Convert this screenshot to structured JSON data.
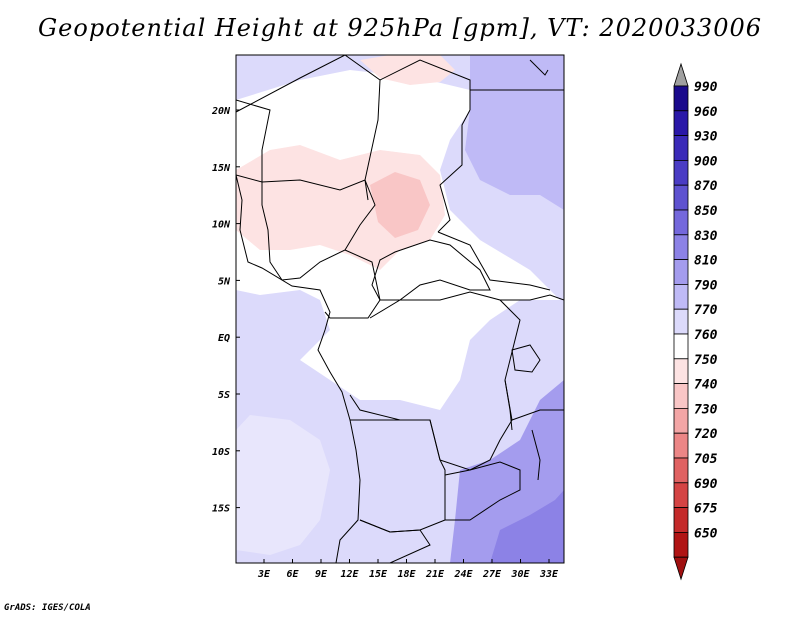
{
  "title": "Geopotential Height at 925hPa [gpm], VT: 2020033006",
  "credit": "GrADS: IGES/COLA",
  "map": {
    "region": "Central Africa",
    "x_ticks": [
      "3E",
      "6E",
      "9E",
      "12E",
      "15E",
      "18E",
      "21E",
      "24E",
      "27E",
      "30E",
      "33E"
    ],
    "y_ticks": [
      "20N",
      "15N",
      "10N",
      "5N",
      "EQ",
      "5S",
      "10S",
      "15S"
    ]
  },
  "colorbar": {
    "labels": [
      "990",
      "960",
      "930",
      "900",
      "870",
      "850",
      "830",
      "810",
      "790",
      "770",
      "760",
      "750",
      "740",
      "730",
      "720",
      "705",
      "690",
      "675",
      "650"
    ],
    "colors": [
      "#1a0a8c",
      "#2a18a8",
      "#3a2ab8",
      "#4a3cc4",
      "#5e52d0",
      "#7468dc",
      "#8c82e6",
      "#a49cee",
      "#bfbaf6",
      "#dcdafb",
      "#ffffff",
      "#fde3e3",
      "#f9c6c6",
      "#f3a6a6",
      "#ec8686",
      "#e06262",
      "#d44444",
      "#c42a2a",
      "#b01414"
    ],
    "top_arrow_color": "#a0a0a0",
    "bottom_arrow_color": "#a01010"
  },
  "field_colors": {
    "base": "#dcdafb",
    "light": "#e8e6fc",
    "white": "#ffffff",
    "pink": "#fde3e3",
    "pink2": "#f9c6c6",
    "mid_blue": "#bfbaf6",
    "blue": "#a49cee",
    "deep_blue": "#8c82e6"
  }
}
